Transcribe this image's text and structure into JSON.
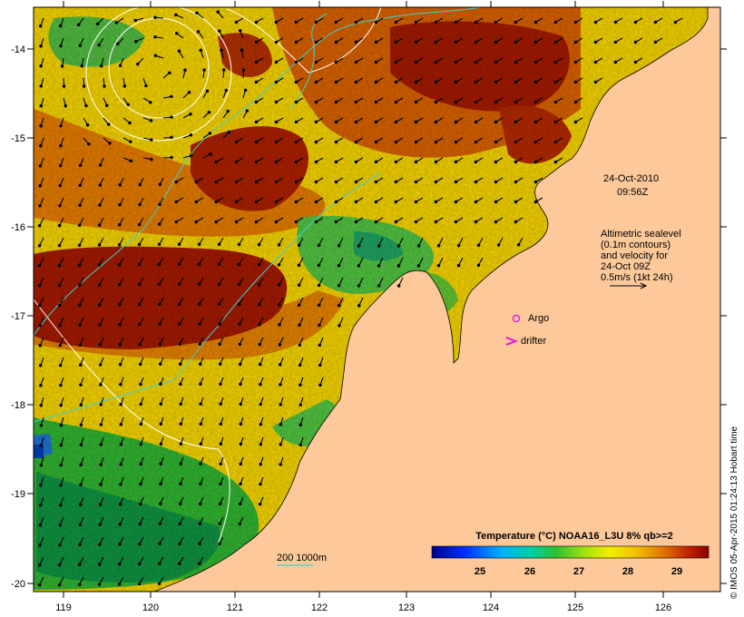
{
  "map": {
    "date_line1": "24-Oct-2010",
    "date_line2": "09:56Z",
    "altimetry_note": [
      "Altimetric sealevel",
      "(0.1m contours)",
      "and velocity for",
      "24-Oct 09Z",
      "0.5m/s (1kt 24h)"
    ],
    "legend_argo": "Argo",
    "legend_drifter": "drifter",
    "depth_legend": "200  1000m",
    "colorbar_title": "Temperature (°C) NOAA16_L3U 8% qb>=2",
    "colorbar_ticks": [
      "25",
      "26",
      "27",
      "28",
      "29"
    ],
    "credit": "© IMOS 05-Apr-2015 01:24:13 Hobart time",
    "x_ticks": [
      "119",
      "120",
      "121",
      "122",
      "123",
      "124",
      "125",
      "126"
    ],
    "y_ticks": [
      "-14",
      "-15",
      "-16",
      "-17",
      "-18",
      "-19",
      "-20"
    ],
    "colors": {
      "land": "#fdc99b",
      "warm": "#a01a00",
      "mid": "#e8c800",
      "cool": "#20b040",
      "isobath": "#40d0d0",
      "argo": "#e020e0"
    }
  }
}
